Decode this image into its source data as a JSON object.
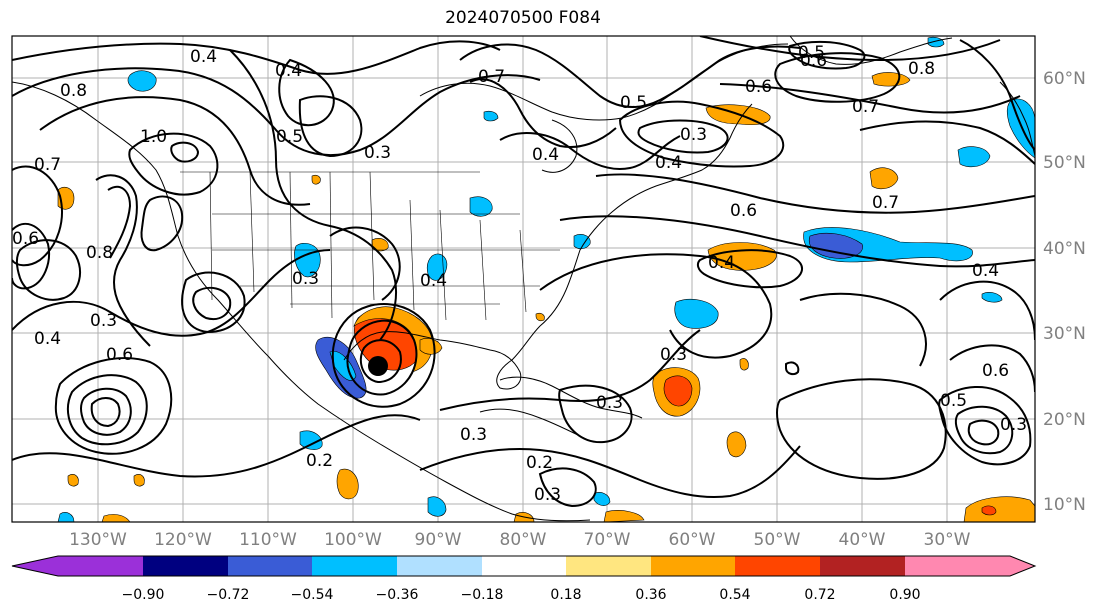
{
  "title": "2024070500 F084",
  "map": {
    "lon_labels": [
      "130°W",
      "120°W",
      "110°W",
      "100°W",
      "90°W",
      "80°W",
      "70°W",
      "60°W",
      "50°W",
      "40°W",
      "30°W"
    ],
    "lat_labels": [
      "60°N",
      "50°N",
      "40°N",
      "30°N",
      "20°N",
      "10°N"
    ],
    "contour_labels": [
      "0.4",
      "0.4",
      "0.4",
      "0.3",
      "0.5",
      "0.8",
      "1.0",
      "0.7",
      "0.6",
      "0.8",
      "0.3",
      "0.4",
      "0.3",
      "0.6",
      "0.6",
      "0.5",
      "0.7",
      "0.6",
      "0.8",
      "0.7",
      "0.4",
      "0.3",
      "0.4",
      "0.5",
      "0.6",
      "0.7",
      "0.4",
      "0.4",
      "0.3",
      "0.5",
      "0.6",
      "0.3",
      "0.2",
      "0.2",
      "0.3",
      "0.3",
      "0.3"
    ]
  },
  "colorbar": {
    "ticks": [
      "−0.90",
      "−0.72",
      "−0.54",
      "−0.36",
      "−0.18",
      "0.18",
      "0.36",
      "0.54",
      "0.72",
      "0.90"
    ],
    "colors": [
      "#9b30d9",
      "#000080",
      "#3a5cd6",
      "#00bfff",
      "#b0e0ff",
      "#ffffff",
      "#ffe680",
      "#ffa500",
      "#ff4500",
      "#b22222",
      "#ff88b0"
    ]
  },
  "colors": {
    "neg_strong": "#3a5cd6",
    "neg": "#00bfff",
    "pos": "#ffa500",
    "pos_strong": "#ff4500"
  }
}
